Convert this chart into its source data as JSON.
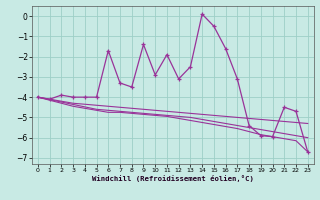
{
  "xlabel": "Windchill (Refroidissement éolien,°C)",
  "bg_color": "#c8eae4",
  "grid_color": "#9ecfc7",
  "line_color": "#993399",
  "x": [
    0,
    1,
    2,
    3,
    4,
    5,
    6,
    7,
    8,
    9,
    10,
    11,
    12,
    13,
    14,
    15,
    16,
    17,
    18,
    19,
    20,
    21,
    22,
    23
  ],
  "y_main": [
    -4.0,
    -4.1,
    -3.9,
    -4.0,
    -4.0,
    -4.0,
    -1.7,
    -3.3,
    -3.5,
    -1.4,
    -2.9,
    -1.9,
    -3.1,
    -2.5,
    0.1,
    -0.5,
    -1.6,
    -3.1,
    -5.4,
    -5.9,
    -5.95,
    -4.5,
    -4.7,
    -6.7
  ],
  "y_trend1": [
    -4.0,
    -4.1,
    -4.2,
    -4.3,
    -4.35,
    -4.4,
    -4.45,
    -4.5,
    -4.55,
    -4.6,
    -4.65,
    -4.7,
    -4.75,
    -4.8,
    -4.85,
    -4.9,
    -4.95,
    -5.0,
    -5.05,
    -5.1,
    -5.15,
    -5.2,
    -5.25,
    -5.3
  ],
  "y_trend2": [
    -4.0,
    -4.12,
    -4.24,
    -4.36,
    -4.48,
    -4.6,
    -4.65,
    -4.7,
    -4.75,
    -4.8,
    -4.85,
    -4.9,
    -4.95,
    -5.0,
    -5.1,
    -5.2,
    -5.3,
    -5.4,
    -5.5,
    -5.6,
    -5.7,
    -5.8,
    -5.9,
    -6.0
  ],
  "y_trend3": [
    -4.0,
    -4.15,
    -4.3,
    -4.45,
    -4.55,
    -4.65,
    -4.75,
    -4.75,
    -4.8,
    -4.85,
    -4.9,
    -4.95,
    -5.05,
    -5.15,
    -5.25,
    -5.35,
    -5.45,
    -5.55,
    -5.7,
    -5.85,
    -5.95,
    -6.05,
    -6.15,
    -6.7
  ],
  "ylim": [
    -7.3,
    0.5
  ],
  "xlim": [
    -0.5,
    23.5
  ],
  "yticks": [
    0,
    -1,
    -2,
    -3,
    -4,
    -5,
    -6,
    -7
  ],
  "xticks": [
    0,
    1,
    2,
    3,
    4,
    5,
    6,
    7,
    8,
    9,
    10,
    11,
    12,
    13,
    14,
    15,
    16,
    17,
    18,
    19,
    20,
    21,
    22,
    23
  ]
}
